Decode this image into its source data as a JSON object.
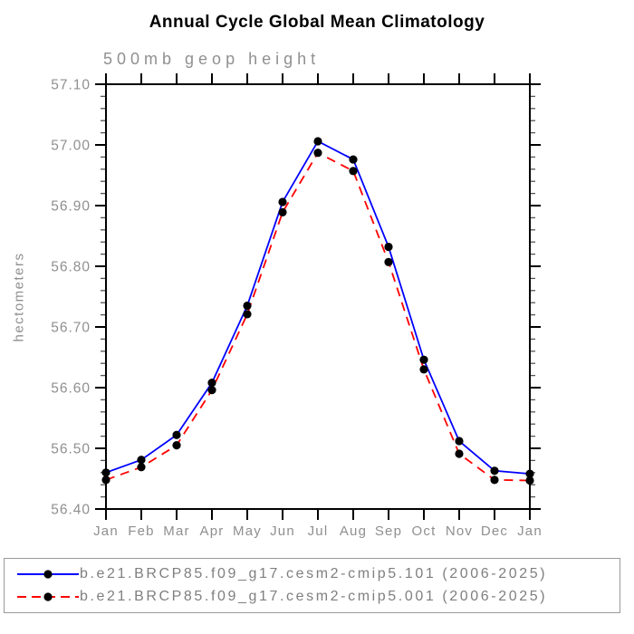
{
  "title": "Annual Cycle Global Mean Climatology",
  "subtitle": "500mb geop height",
  "chart_data": {
    "type": "line",
    "title": "Annual Cycle Global Mean Climatology",
    "subtitle": "500mb geop height",
    "ylabel": "hectometers",
    "xlabel": "",
    "x_categories": [
      "Jan",
      "Feb",
      "Mar",
      "Apr",
      "May",
      "Jun",
      "Jul",
      "Aug",
      "Sep",
      "Oct",
      "Nov",
      "Dec",
      "Jan"
    ],
    "ylim": [
      56.4,
      57.1
    ],
    "ytick_labels": [
      "56.40",
      "56.50",
      "56.60",
      "56.70",
      "56.80",
      "56.90",
      "57.00",
      "57.10"
    ],
    "ytick_major_step": 0.1,
    "ytick_minor_step": 0.02,
    "grid": false,
    "legend_position": "bottom",
    "axis_color": "#000000",
    "label_color": "#8f8f8f",
    "series": [
      {
        "name": "b.e21.BRCP85.f09_g17.cesm2-cmip5.101 (2006-2025)",
        "color": "#0000ff",
        "line_style": "solid",
        "marker": "filled-circle",
        "marker_color": "#000000",
        "values": [
          56.46,
          56.481,
          56.522,
          56.608,
          56.735,
          56.906,
          57.006,
          56.976,
          56.832,
          56.646,
          56.512,
          56.463,
          56.458
        ]
      },
      {
        "name": "b.e21.BRCP85.f09_g17.cesm2-cmip5.001 (2006-2025)",
        "color": "#ff0000",
        "line_style": "dashed",
        "marker": "filled-circle",
        "marker_color": "#000000",
        "values": [
          56.448,
          56.469,
          56.505,
          56.596,
          56.721,
          56.889,
          56.987,
          56.957,
          56.807,
          56.63,
          56.491,
          56.448,
          56.447
        ]
      }
    ]
  }
}
